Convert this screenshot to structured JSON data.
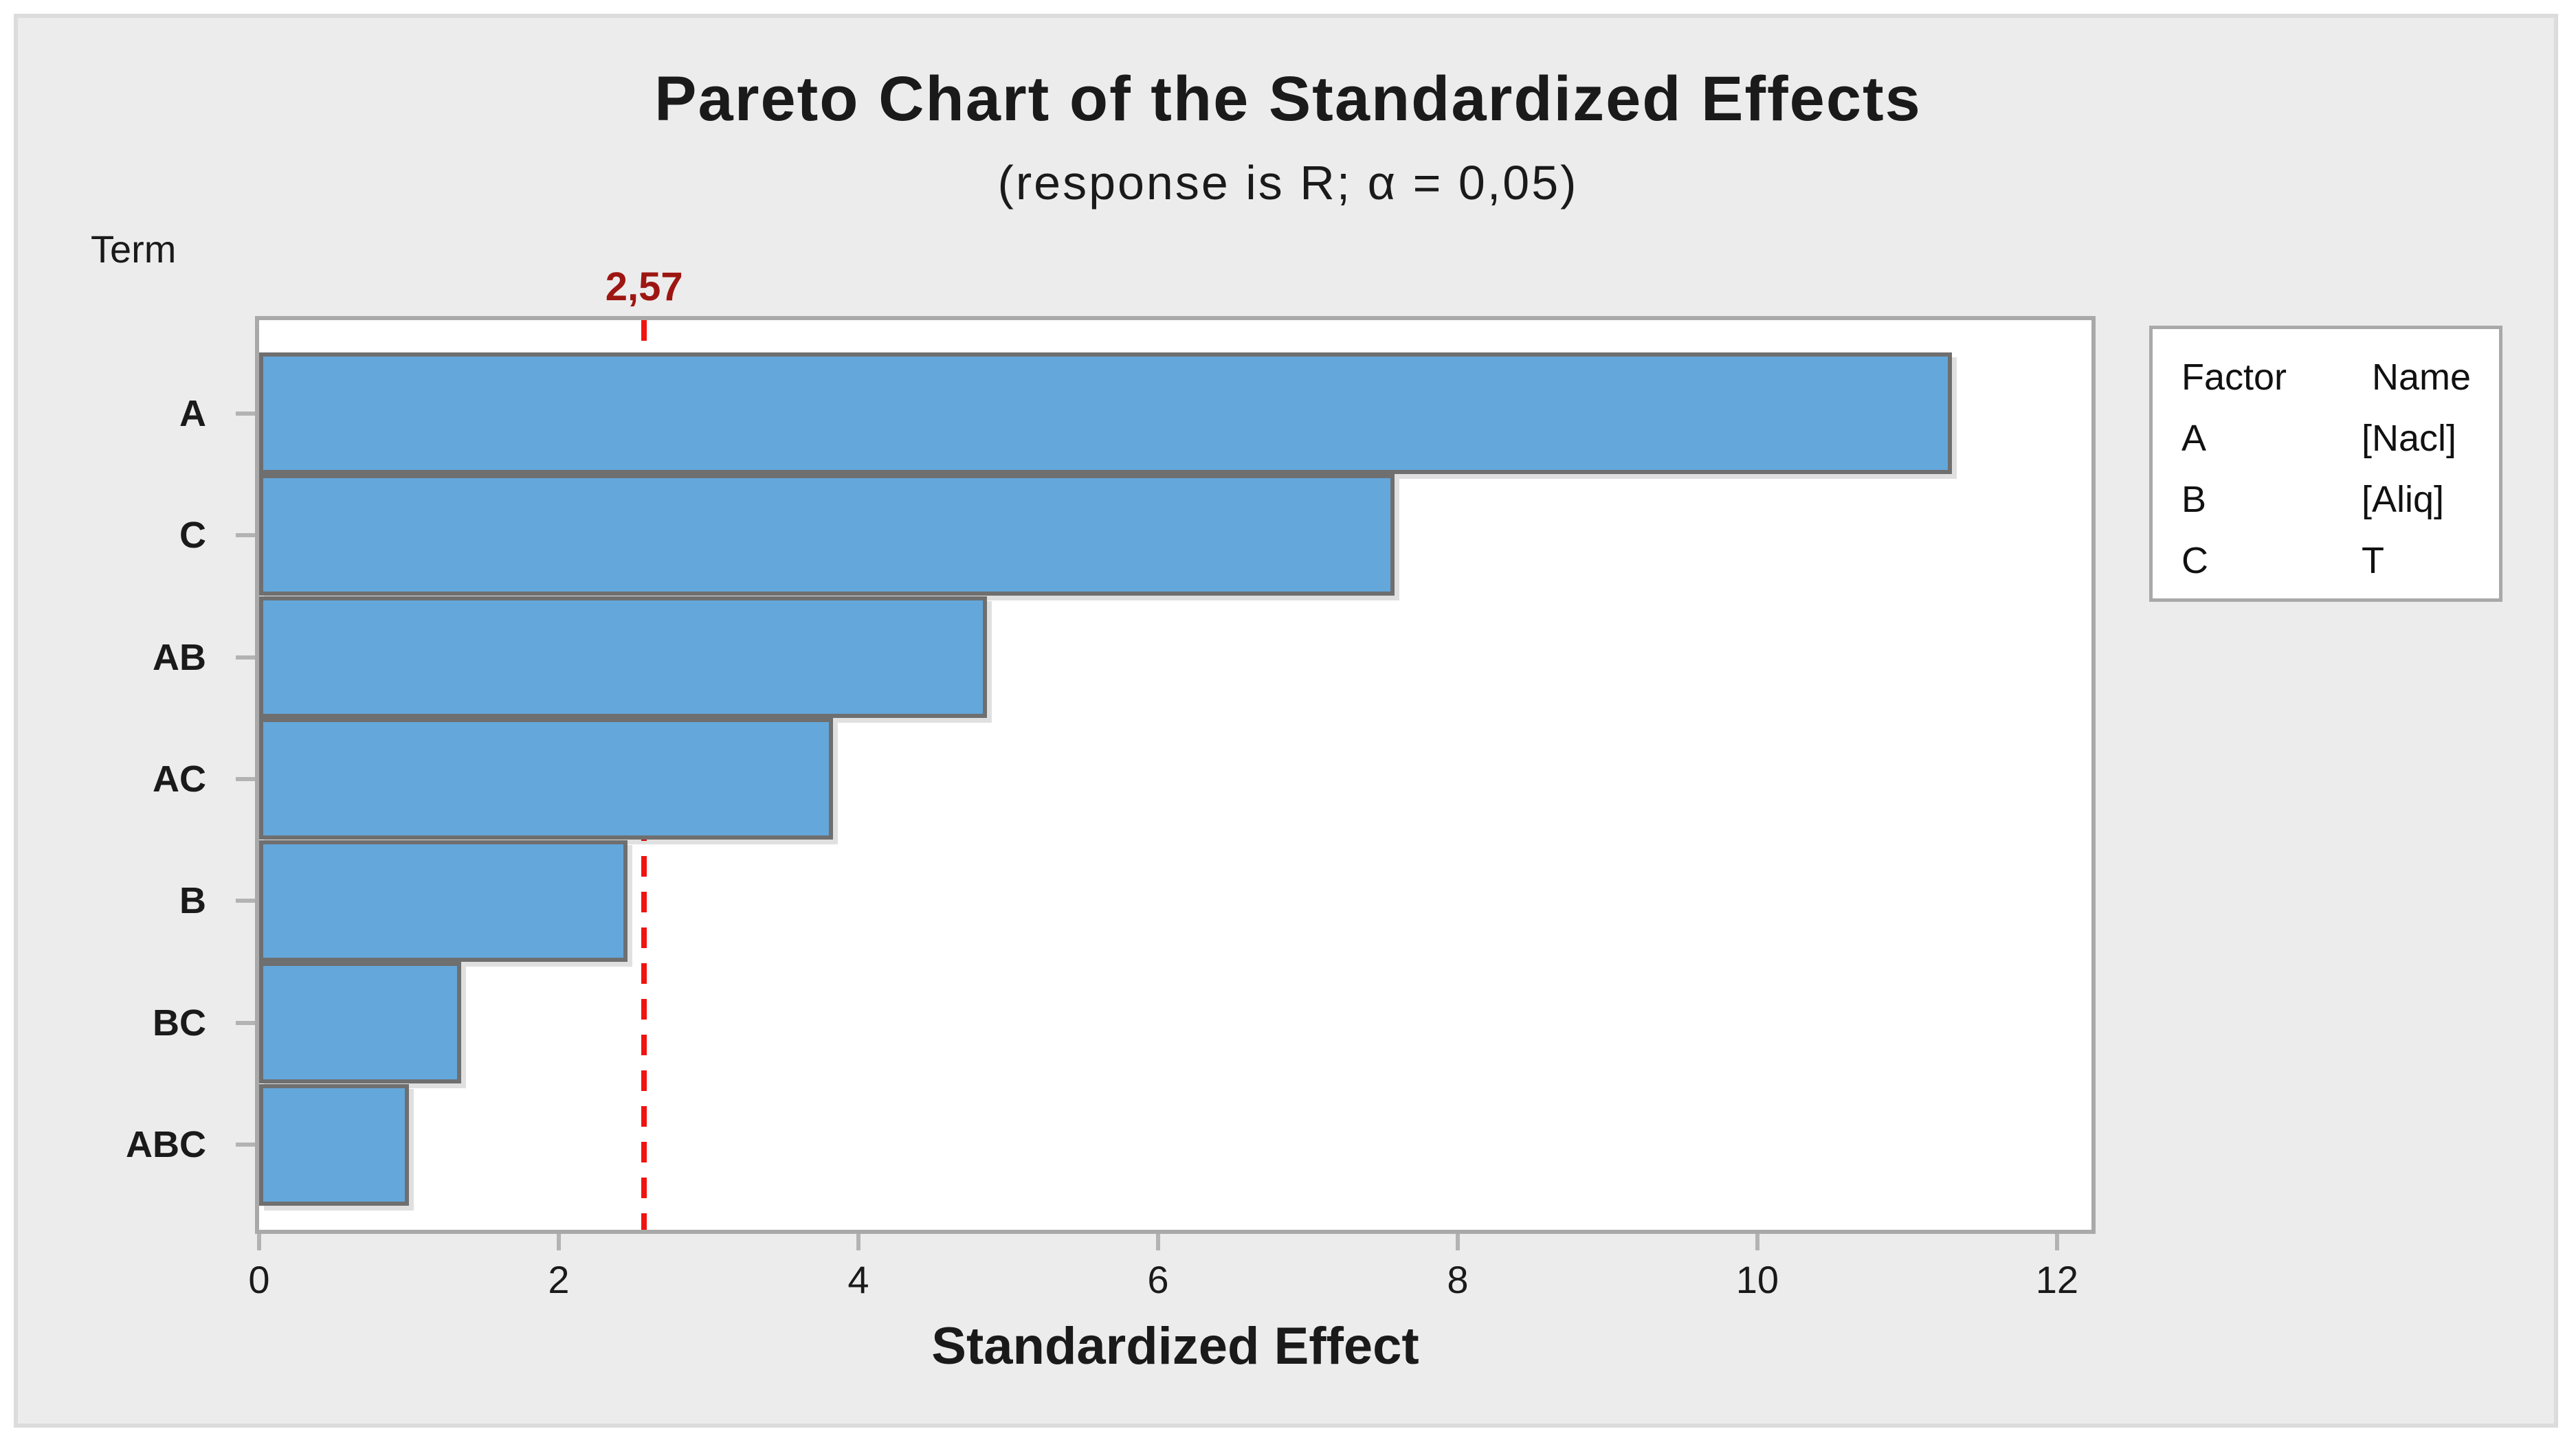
{
  "figure": {
    "title": "Pareto Chart of the Standardized Effects",
    "subtitle": "(response is R; α = 0,05)",
    "term_label": "Term",
    "xlabel": "Standardized Effect"
  },
  "legend": {
    "headers": [
      "Factor",
      "Name"
    ],
    "rows": [
      {
        "factor": "A",
        "name": "[Nacl]"
      },
      {
        "factor": "B",
        "name": "[Aliq]"
      },
      {
        "factor": "C",
        "name": "T"
      }
    ]
  },
  "chart_data": {
    "type": "bar",
    "orientation": "horizontal",
    "title": "Pareto Chart of the Standardized Effects",
    "subtitle": "(response is R; α = 0,05)",
    "xlabel": "Standardized Effect",
    "ylabel": "Term",
    "categories": [
      "A",
      "C",
      "AB",
      "AC",
      "B",
      "BC",
      "ABC"
    ],
    "values": [
      11.3,
      7.58,
      4.86,
      3.83,
      2.46,
      1.35,
      1.0
    ],
    "x_ticks": [
      0,
      2,
      4,
      6,
      8,
      10,
      12
    ],
    "xlim": [
      0,
      12.23
    ],
    "grid": false,
    "legend_position": "right",
    "reference_line": {
      "value": 2.57,
      "label": "2,57"
    },
    "colors": {
      "bar_fill": "#64a7db",
      "bar_border": "#6f6f6f",
      "ref_line": "#f01310",
      "ref_label": "#9d1612",
      "frame": "#a9a9a9",
      "tick": "#b3b3b3",
      "figure_bg": "#ececec",
      "plot_bg": "#ffffff",
      "figure_border": "#dcdcdc",
      "text": "#1a1a1a"
    }
  }
}
